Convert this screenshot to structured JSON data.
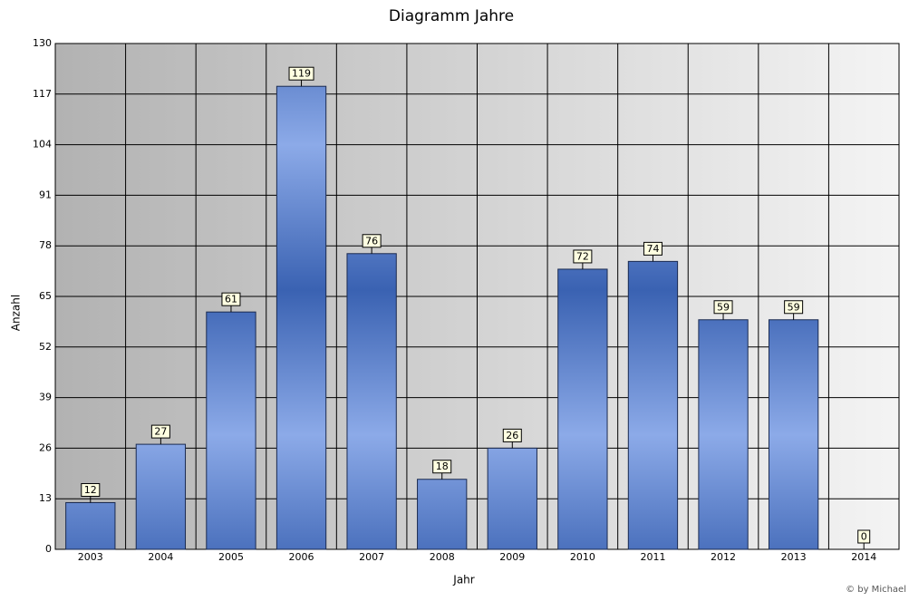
{
  "chart_data": {
    "type": "bar",
    "title": "Diagramm Jahre",
    "x_label": "Jahr",
    "y_label": "Anzahl",
    "credit": "© by Michael",
    "categories": [
      "2003",
      "2004",
      "2005",
      "2006",
      "2007",
      "2008",
      "2009",
      "2010",
      "2011",
      "2012",
      "2013",
      "2014"
    ],
    "values": [
      12,
      27,
      61,
      119,
      76,
      18,
      26,
      72,
      74,
      59,
      59,
      0
    ],
    "color": "#4a74c4",
    "ylim": [
      0,
      130
    ],
    "yticks": [
      0,
      13,
      26,
      39,
      52,
      65,
      78,
      91,
      104,
      117,
      130
    ],
    "grid": true
  }
}
